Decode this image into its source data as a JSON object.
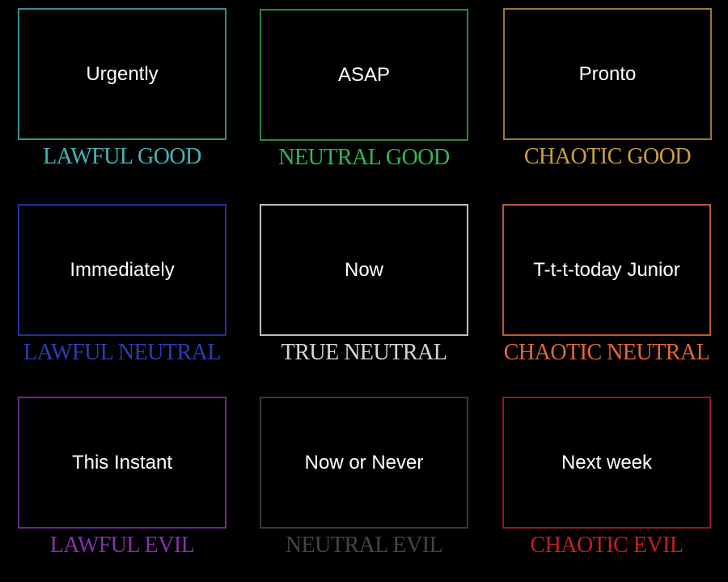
{
  "cells": [
    {
      "text": "Urgently",
      "label": "LAWFUL GOOD",
      "color": "#45b5b8",
      "border": "#3a8f90"
    },
    {
      "text": "ASAP",
      "label": "NEUTRAL GOOD",
      "color": "#35b553",
      "border": "#2a8a40"
    },
    {
      "text": "Pronto",
      "label": "CHAOTIC GOOD",
      "color": "#c9a03a",
      "border": "#9a7a30"
    },
    {
      "text": "Immediately",
      "label": "LAWFUL NEUTRAL",
      "color": "#2e3bb8",
      "border": "#25309a"
    },
    {
      "text": "Now",
      "label": "TRUE NEUTRAL",
      "color": "#d6d6d6",
      "border": "#bdbdbd"
    },
    {
      "text": "T-t-t-today Junior",
      "label": "CHAOTIC NEUTRAL",
      "color": "#e0692e",
      "border": "#b85a2a"
    },
    {
      "text": "This Instant",
      "label": "LAWFUL EVIL",
      "color": "#8a2fb0",
      "border": "#6a2a90"
    },
    {
      "text": "Now or Never",
      "label": "NEUTRAL EVIL",
      "color": "#454545",
      "border": "#3a3a3a"
    },
    {
      "text": "Next week",
      "label": "CHAOTIC EVIL",
      "color": "#c81e22",
      "border": "#8f1a1c"
    }
  ]
}
